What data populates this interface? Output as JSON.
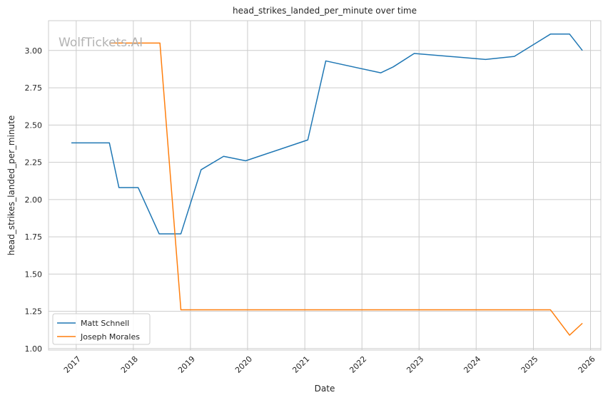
{
  "watermark": "WolfTickets.AI",
  "chart_data": {
    "type": "line",
    "title": "head_strikes_landed_per_minute over time",
    "xlabel": "Date",
    "ylabel": "head_strikes_landed_per_minute",
    "xlim": [
      "2016-07-08",
      "2026-03-08"
    ],
    "ylim": [
      0.99,
      3.2
    ],
    "x_ticks": [
      "2017",
      "2018",
      "2019",
      "2020",
      "2021",
      "2022",
      "2023",
      "2024",
      "2025",
      "2026"
    ],
    "y_ticks": [
      "1.00",
      "1.25",
      "1.50",
      "1.75",
      "2.00",
      "2.25",
      "2.50",
      "2.75",
      "3.00"
    ],
    "grid": true,
    "legend_position": "lower-left",
    "series": [
      {
        "name": "Matt Schnell",
        "color": "#1f77b4",
        "points": [
          {
            "x": "2016-12-01",
            "y": 2.38
          },
          {
            "x": "2017-08-01",
            "y": 2.38
          },
          {
            "x": "2017-10-01",
            "y": 2.08
          },
          {
            "x": "2018-02-01",
            "y": 2.08
          },
          {
            "x": "2018-06-15",
            "y": 1.77
          },
          {
            "x": "2018-11-01",
            "y": 1.77
          },
          {
            "x": "2019-03-10",
            "y": 2.2
          },
          {
            "x": "2019-08-01",
            "y": 2.29
          },
          {
            "x": "2019-12-20",
            "y": 2.26
          },
          {
            "x": "2021-01-20",
            "y": 2.4
          },
          {
            "x": "2021-05-15",
            "y": 2.93
          },
          {
            "x": "2022-05-01",
            "y": 2.85
          },
          {
            "x": "2022-07-20",
            "y": 2.89
          },
          {
            "x": "2022-12-01",
            "y": 2.98
          },
          {
            "x": "2024-03-01",
            "y": 2.94
          },
          {
            "x": "2024-09-01",
            "y": 2.96
          },
          {
            "x": "2025-04-20",
            "y": 3.11
          },
          {
            "x": "2025-08-20",
            "y": 3.11
          },
          {
            "x": "2025-11-10",
            "y": 3.0
          }
        ]
      },
      {
        "name": "Joseph Morales",
        "color": "#ff7f0e",
        "points": [
          {
            "x": "2017-08-01",
            "y": 3.05
          },
          {
            "x": "2018-06-20",
            "y": 3.05
          },
          {
            "x": "2018-11-01",
            "y": 1.26
          },
          {
            "x": "2025-04-20",
            "y": 1.26
          },
          {
            "x": "2025-08-20",
            "y": 1.09
          },
          {
            "x": "2025-11-10",
            "y": 1.17
          }
        ]
      }
    ]
  }
}
